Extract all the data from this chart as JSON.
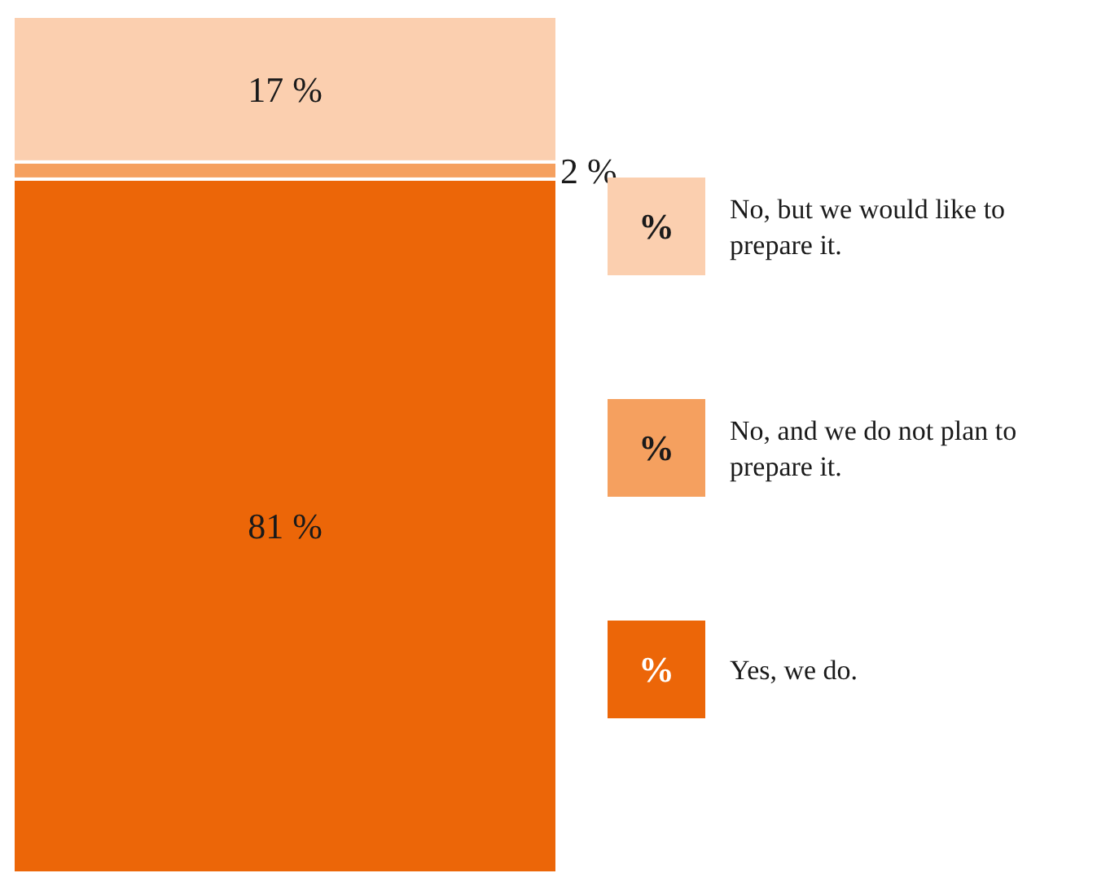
{
  "chart_data": {
    "type": "bar",
    "stacked": true,
    "categories": [
      null
    ],
    "ylim": [
      0,
      100
    ],
    "legend": "right",
    "annotations": [
      "%",
      "%",
      "%"
    ],
    "series": [
      {
        "name": "Yes, we do.",
        "color": "#ec6608",
        "values": [
          81
        ],
        "value_labels": [
          "81 %"
        ]
      },
      {
        "name": "No, and we do not plan to prepare it.",
        "color": "#f5a05f",
        "values": [
          2
        ],
        "value_labels": [
          "2 %"
        ]
      },
      {
        "name": "No, but we would like to prepare it.",
        "color": "#fbcfaf",
        "values": [
          17
        ],
        "value_labels": [
          "17 %"
        ]
      }
    ]
  }
}
